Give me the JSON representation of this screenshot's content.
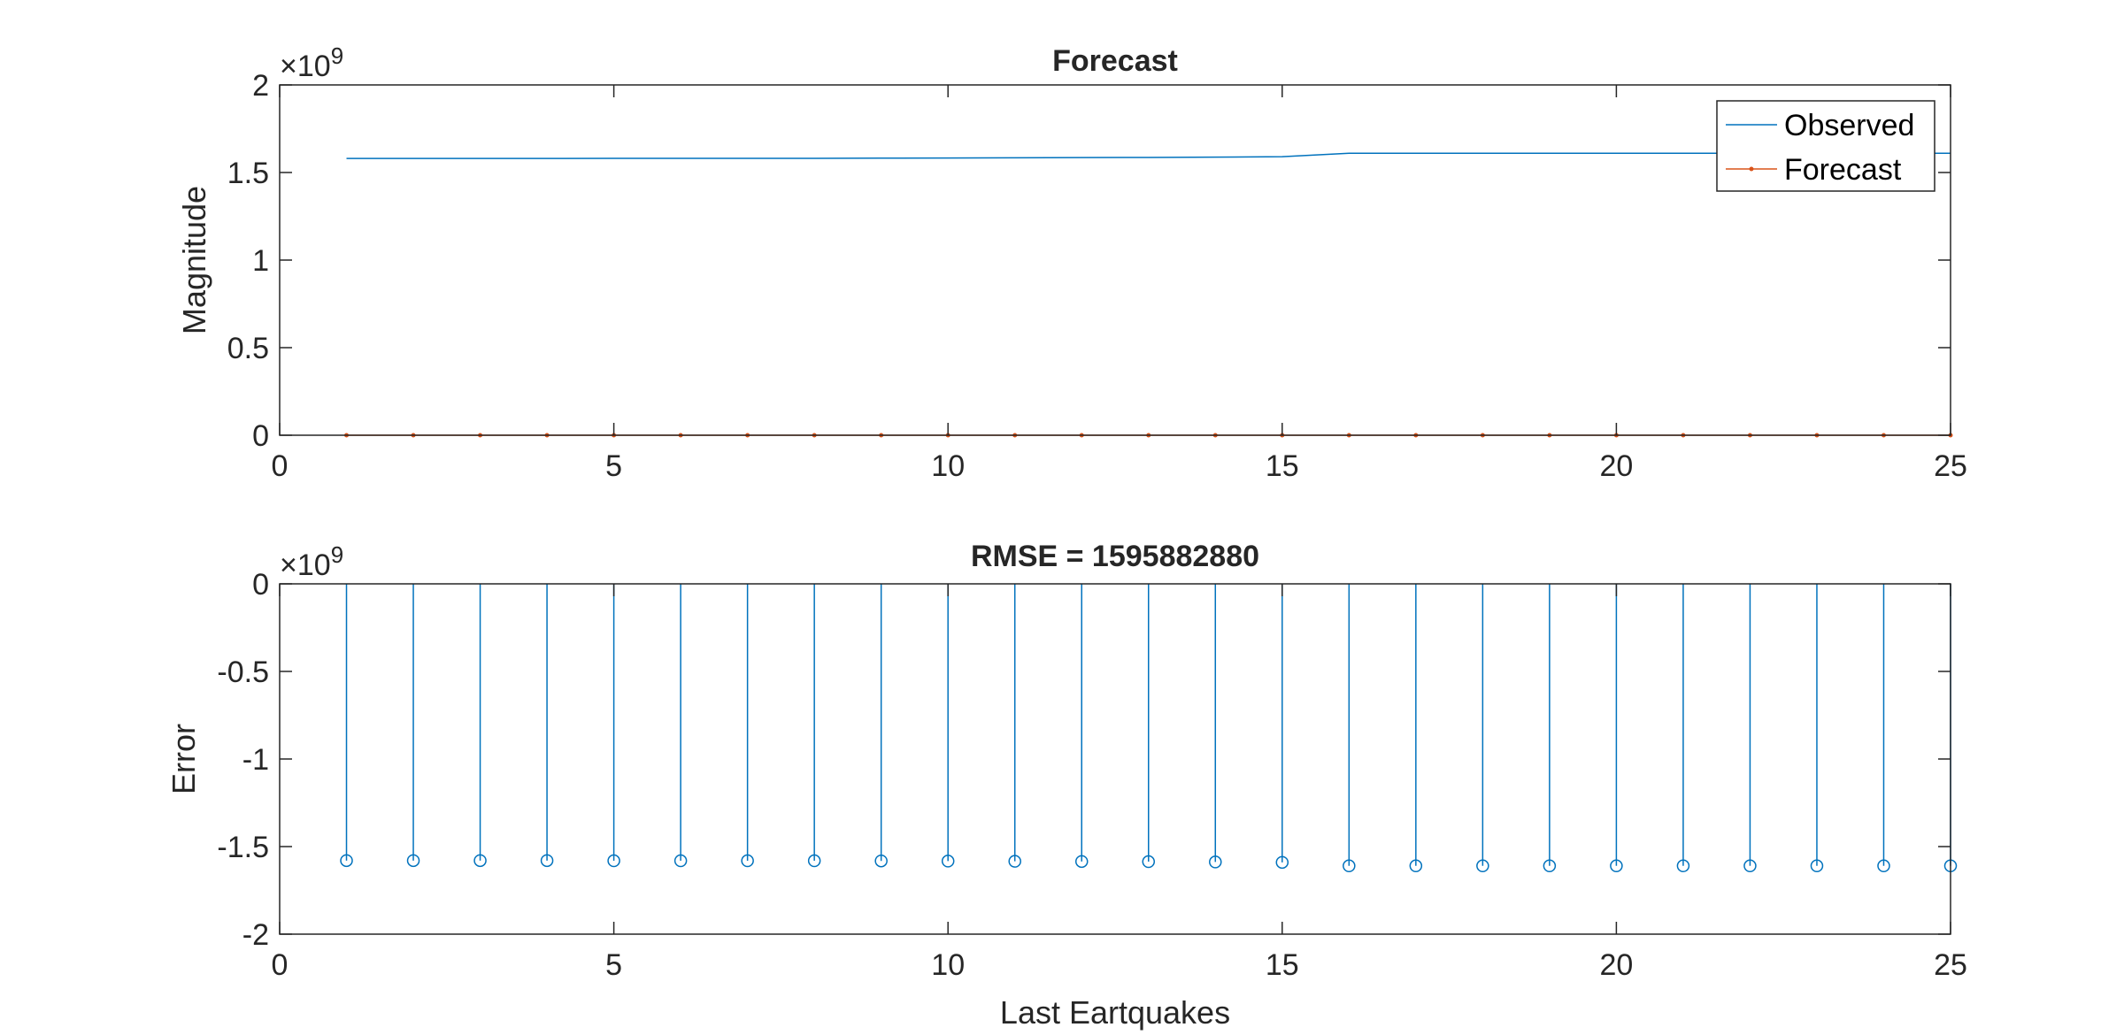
{
  "chart_data": [
    {
      "type": "line",
      "title": "Forecast",
      "xlabel": "",
      "ylabel": "Magnitude",
      "xlim": [
        0,
        25
      ],
      "ylim": [
        0,
        2
      ],
      "y_exponent": "×10",
      "y_exponent_power": "9",
      "xticks": [
        "0",
        "5",
        "10",
        "15",
        "20",
        "25"
      ],
      "yticks": [
        "0",
        "0.5",
        "1",
        "1.5",
        "2"
      ],
      "ytick_values": [
        0,
        0.5,
        1,
        1.5,
        2
      ],
      "xtick_values": [
        0,
        5,
        10,
        15,
        20,
        25
      ],
      "grid": false,
      "legend_position": "top-right",
      "x": [
        1,
        2,
        3,
        4,
        5,
        6,
        7,
        8,
        9,
        10,
        11,
        12,
        13,
        14,
        15,
        16,
        17,
        18,
        19,
        20,
        21,
        22,
        23,
        24,
        25
      ],
      "series": [
        {
          "name": "Observed",
          "color": "#0072BD",
          "marker": "none",
          "values": [
            1.58,
            1.58,
            1.58,
            1.58,
            1.581,
            1.581,
            1.581,
            1.581,
            1.582,
            1.583,
            1.584,
            1.585,
            1.586,
            1.588,
            1.59,
            1.61,
            1.61,
            1.61,
            1.61,
            1.61,
            1.61,
            1.61,
            1.61,
            1.61,
            1.61
          ]
        },
        {
          "name": "Forecast",
          "color": "#D95319",
          "marker": "dot",
          "values": [
            0,
            0,
            0,
            0,
            0,
            0,
            0,
            0,
            0,
            0,
            0,
            0,
            0,
            0,
            0,
            0,
            0,
            0,
            0,
            0,
            0,
            0,
            0,
            0,
            0
          ]
        }
      ]
    },
    {
      "type": "stem",
      "title": "RMSE = 1595882880",
      "xlabel": "Last Eartquakes",
      "ylabel": "Error",
      "xlim": [
        0,
        25
      ],
      "ylim": [
        -2,
        0
      ],
      "y_exponent": "×10",
      "y_exponent_power": "9",
      "xticks": [
        "0",
        "5",
        "10",
        "15",
        "20",
        "25"
      ],
      "yticks": [
        "0",
        "-0.5",
        "-1",
        "-1.5",
        "-2"
      ],
      "ytick_values": [
        0,
        -0.5,
        -1,
        -1.5,
        -2
      ],
      "xtick_values": [
        0,
        5,
        10,
        15,
        20,
        25
      ],
      "grid": false,
      "x": [
        1,
        2,
        3,
        4,
        5,
        6,
        7,
        8,
        9,
        10,
        11,
        12,
        13,
        14,
        15,
        16,
        17,
        18,
        19,
        20,
        21,
        22,
        23,
        24,
        25
      ],
      "series": [
        {
          "color": "#0072BD",
          "marker": "circle",
          "values": [
            -1.58,
            -1.58,
            -1.58,
            -1.58,
            -1.581,
            -1.581,
            -1.581,
            -1.581,
            -1.582,
            -1.583,
            -1.584,
            -1.585,
            -1.586,
            -1.588,
            -1.59,
            -1.61,
            -1.61,
            -1.61,
            -1.61,
            -1.61,
            -1.61,
            -1.61,
            -1.61,
            -1.61,
            -1.61
          ]
        }
      ]
    }
  ]
}
